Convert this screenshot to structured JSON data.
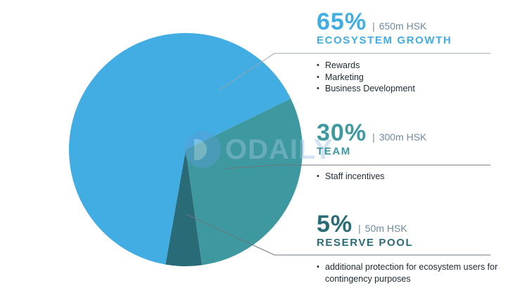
{
  "chart_data": {
    "type": "pie",
    "slices": [
      {
        "label": "ECOSYSTEM GROWTH",
        "percent_label": "65%",
        "amount": "650m HSK",
        "value": 65,
        "color": "#41ade3",
        "items": [
          "Rewards",
          "Marketing",
          "Business Development"
        ]
      },
      {
        "label": "TEAM",
        "percent_label": "30%",
        "amount": "300m HSK",
        "value": 30,
        "color": "#3d999f",
        "items": [
          "Staff incentives"
        ]
      },
      {
        "label": "RESERVE POOL",
        "percent_label": "5%",
        "amount": "50m HSK",
        "value": 5,
        "color": "#2a6b78",
        "items": [
          "additional protection for ecosystem users for contingency purposes"
        ]
      }
    ],
    "separator": "|",
    "leader_line_color": "#6b7780",
    "divider_color": "#9aa4ab"
  },
  "watermark": {
    "text": "ODAILY",
    "color": "#5a9fd4"
  }
}
